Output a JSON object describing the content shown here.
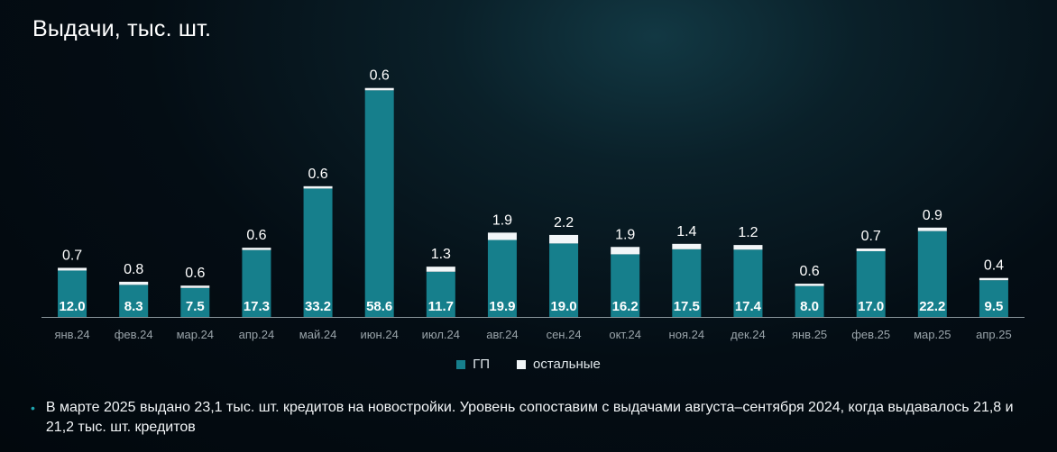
{
  "colors": {
    "gp": "#167f8c",
    "other": "#f2f6f8",
    "axis": "#8a969c",
    "tick": "#9aa4aa",
    "bullet": "#1fa6b0"
  },
  "legend": {
    "gp": "ГП",
    "other": "остальные"
  },
  "note": {
    "bullet": "•",
    "text": "В марте 2025 выдано 23,1 тыс. шт. кредитов на новостройки. Уровень сопоставим с выдачами августа–сентября 2024, когда выдавалось 21,8 и 21,2 тыс. шт. кредитов"
  },
  "chart_data": {
    "type": "bar",
    "stacked": true,
    "title": "Выдачи, тыс. шт.",
    "categories": [
      "янв.24",
      "фев.24",
      "мар.24",
      "апр.24",
      "май.24",
      "июн.24",
      "июл.24",
      "авг.24",
      "сен.24",
      "окт.24",
      "ноя.24",
      "дек.24",
      "янв.25",
      "фев.25",
      "мар.25",
      "апр.25"
    ],
    "series": [
      {
        "name": "ГП",
        "values": [
          12.0,
          8.3,
          7.5,
          17.3,
          33.2,
          58.6,
          11.7,
          19.9,
          19.0,
          16.2,
          17.5,
          17.4,
          8.0,
          17.0,
          22.2,
          9.5
        ]
      },
      {
        "name": "остальные",
        "values": [
          0.7,
          0.8,
          0.6,
          0.6,
          0.6,
          0.6,
          1.3,
          1.9,
          2.2,
          1.9,
          1.4,
          1.2,
          0.6,
          0.7,
          0.9,
          0.4
        ]
      }
    ],
    "data_labels": {
      "gp": [
        "12.0",
        "8.3",
        "7.5",
        "17.3",
        "33.2",
        "58.6",
        "11.7",
        "19.9",
        "19.0",
        "16.2",
        "17.5",
        "17.4",
        "8.0",
        "17.0",
        "22.2",
        "9.5"
      ],
      "other": [
        "0.7",
        "0.8",
        "0.6",
        "0.6",
        "0.6",
        "0.6",
        "1.3",
        "1.9",
        "2.2",
        "1.9",
        "1.4",
        "1.2",
        "0.6",
        "0.7",
        "0.9",
        "0.4"
      ]
    },
    "ylim": [
      0,
      61
    ],
    "grid": false,
    "legend_position": "bottom-center"
  }
}
